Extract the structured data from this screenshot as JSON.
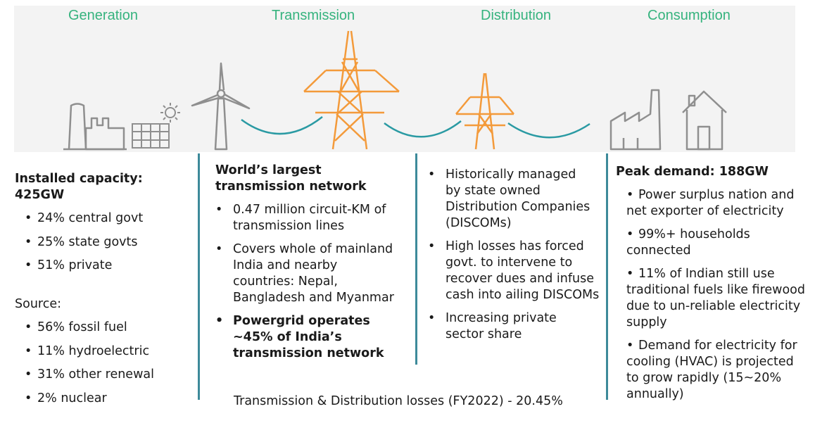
{
  "stages": {
    "generation": "Generation",
    "transmission": "Transmission",
    "distribution": "Distribution",
    "consumption": "Consumption"
  },
  "generation": {
    "heading": "Installed capacity: 425GW",
    "ownership": [
      "24% central govt",
      "25% state govts",
      "51% private"
    ],
    "source_label": "Source:",
    "sources": [
      "56% fossil fuel",
      "11% hydroelectric",
      "31% other renewal",
      "2% nuclear"
    ]
  },
  "transmission": {
    "heading": "World’s largest transmission network",
    "points": [
      "0.47 million circuit-KM of transmission lines",
      "Covers whole of mainland India and nearby countries: Nepal, Bangladesh and Myanmar"
    ],
    "highlight": "Powergrid operates ~45% of India’s transmission network"
  },
  "distribution": {
    "points": [
      "Historically managed by state owned Distribution Companies (DISCOMs)",
      "High losses has forced govt. to intervene to recover dues and infuse cash into ailing DISCOMs",
      "Increasing private sector share"
    ]
  },
  "consumption": {
    "heading": "Peak demand: 188GW",
    "points": [
      "Power surplus nation and net exporter of electricity",
      "99%+ households connected",
      "11% of Indian still use traditional fuels like firewood due to un-reliable electricity supply",
      "Demand for electricity for cooling (HVAC) is projected to grow rapidly (15~20% annually)"
    ]
  },
  "footer": "Transmission & Distribution losses (FY2022) - 20.45%",
  "colors": {
    "stage_label": "#36b37e",
    "tower": "#f39a3a",
    "wire": "#2a9aa3",
    "icon": "#8f8f8f",
    "divider": "#3d8a9a"
  }
}
